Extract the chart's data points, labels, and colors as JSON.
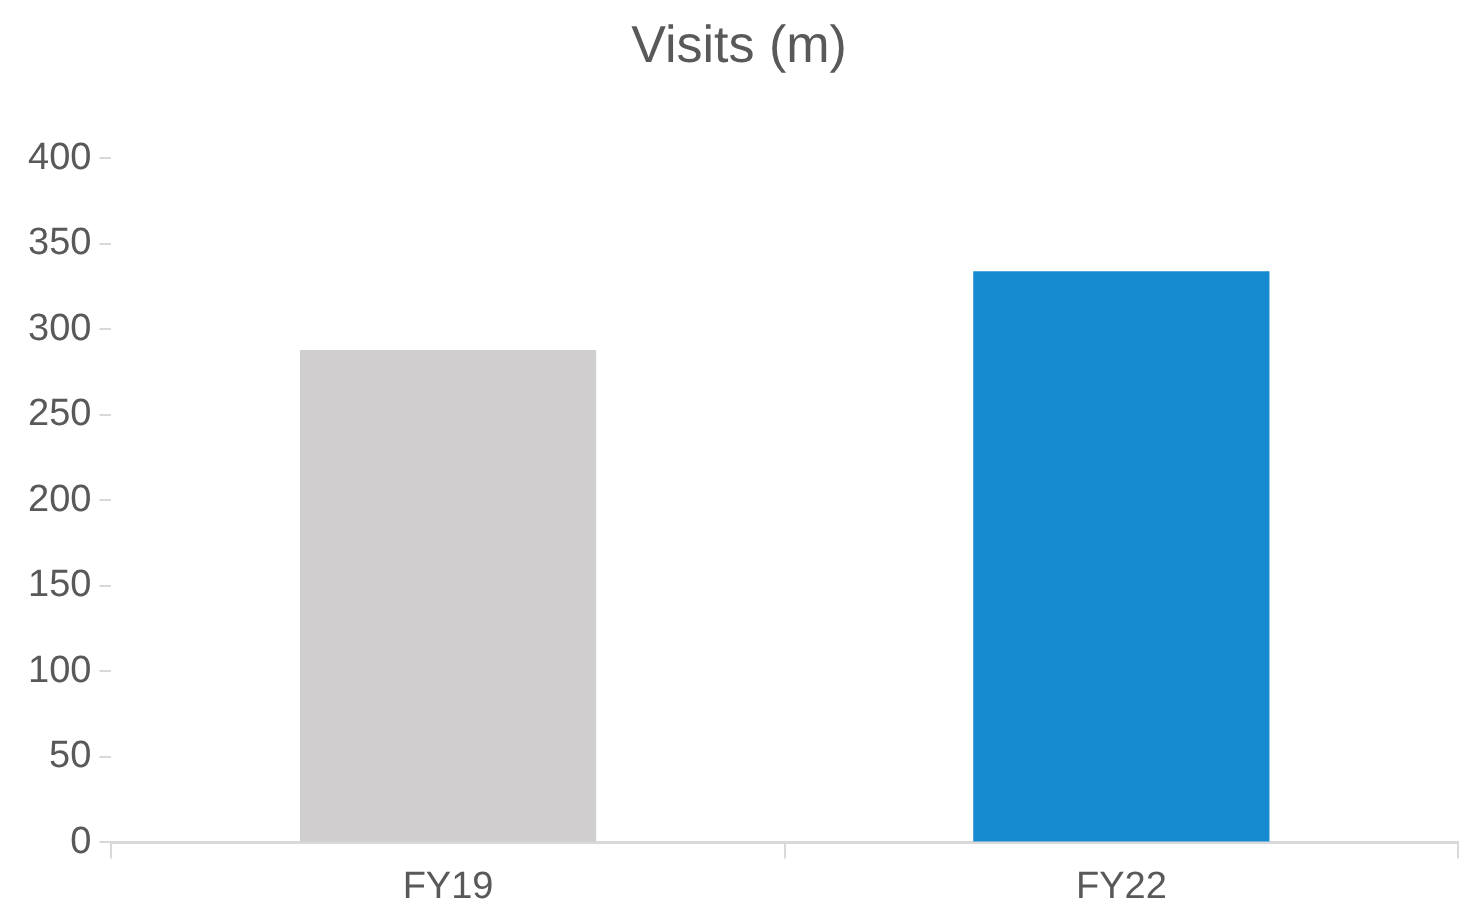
{
  "chart_data": {
    "type": "bar",
    "title": "Visits (m)",
    "categories": [
      "FY19",
      "FY22"
    ],
    "values": [
      288,
      334
    ],
    "colors": [
      "#d0cece",
      "#168bd0"
    ],
    "ylim": [
      0,
      400
    ],
    "yticks": [
      0,
      50,
      100,
      150,
      200,
      250,
      300,
      350,
      400
    ],
    "grid": false,
    "legend": false
  }
}
